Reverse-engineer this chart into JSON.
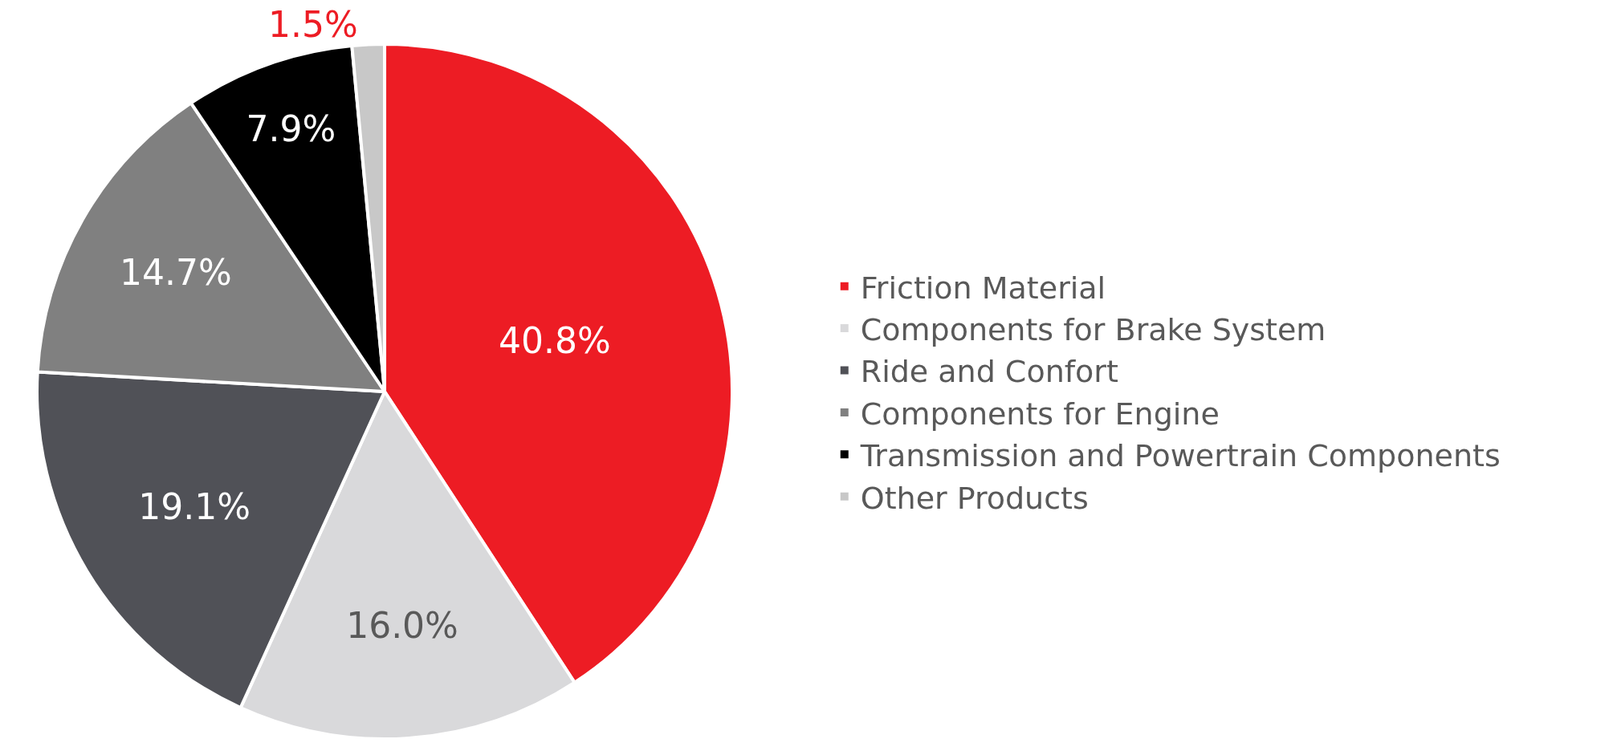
{
  "chart_data": {
    "type": "pie",
    "categories": [
      "Friction Material",
      "Components for Brake System",
      "Ride and Confort",
      "Components for Engine",
      "Transmission and Powertrain Components",
      "Other Products"
    ],
    "values": [
      40.8,
      16.0,
      19.1,
      14.7,
      7.9,
      1.5
    ],
    "colors": [
      "#ed1c24",
      "#d9d9db",
      "#505157",
      "#808080",
      "#000000",
      "#c8c8c8"
    ],
    "value_labels": [
      "40.8%",
      "16.0%",
      "19.1%",
      "14.7%",
      "7.9%",
      "1.5%"
    ],
    "legend": "right"
  }
}
